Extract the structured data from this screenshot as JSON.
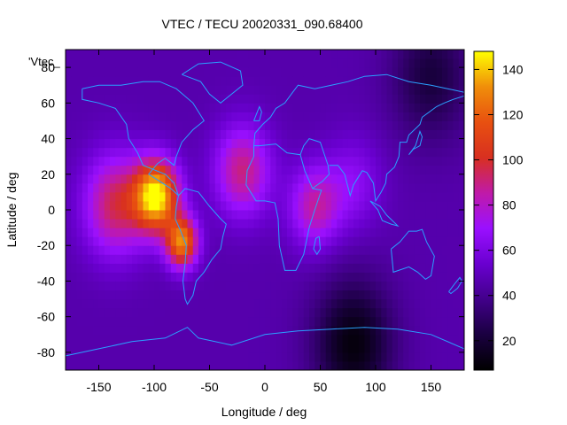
{
  "chart_data": {
    "type": "heatmap",
    "title": "VTEC / TECU 20020331_090.68400",
    "xlabel": "Longitude / deg",
    "ylabel": "Latitude / deg",
    "key_label": "'Vtec_",
    "xlim": [
      -180,
      180
    ],
    "ylim": [
      -90,
      90
    ],
    "x_ticks": [
      "-150",
      "-100",
      "-50",
      "0",
      "50",
      "100",
      "150"
    ],
    "x_tick_values": [
      -150,
      -100,
      -50,
      0,
      50,
      100,
      150
    ],
    "y_ticks": [
      "80",
      "60",
      "40",
      "20",
      "0",
      "-20",
      "-40",
      "-60",
      "-80"
    ],
    "y_tick_values": [
      80,
      60,
      40,
      20,
      0,
      -20,
      -40,
      -60,
      -80
    ],
    "colorbar": {
      "range": [
        7,
        148
      ],
      "ticks": [
        "140",
        "120",
        "100",
        "80",
        "60",
        "40",
        "20"
      ],
      "tick_values": [
        140,
        120,
        100,
        80,
        60,
        40,
        20
      ],
      "palette": [
        "#000000",
        "#1a0040",
        "#42008a",
        "#6a00d0",
        "#9a10ff",
        "#c01aa8",
        "#d83020",
        "#e85010",
        "#f08e0a",
        "#ffff00"
      ]
    },
    "background_tec": 46,
    "features": [
      {
        "name": "equatorial-anomaly-peak",
        "lon": -98,
        "lat": 8,
        "tec": 148,
        "spread": 14
      },
      {
        "name": "south-american-crest",
        "lon": -75,
        "lat": -18,
        "tec": 128,
        "spread": 10
      },
      {
        "name": "pacific-anomaly",
        "lon": -135,
        "lat": 3,
        "tec": 95,
        "spread": 20
      },
      {
        "name": "atlantic-north-crest",
        "lon": -20,
        "lat": 22,
        "tec": 90,
        "spread": 18
      },
      {
        "name": "african-extension",
        "lon": 45,
        "lat": 2,
        "tec": 85,
        "spread": 16
      },
      {
        "name": "indian-tail",
        "lon": 80,
        "lat": 15,
        "tec": 65,
        "spread": 18
      },
      {
        "name": "southern-depletion",
        "lon": 80,
        "lat": -75,
        "tec": 10,
        "spread": 25
      },
      {
        "name": "north-east-depletion",
        "lon": 150,
        "lat": 75,
        "tec": 22,
        "spread": 25
      }
    ],
    "coastline_color": "#2aa0ff"
  }
}
